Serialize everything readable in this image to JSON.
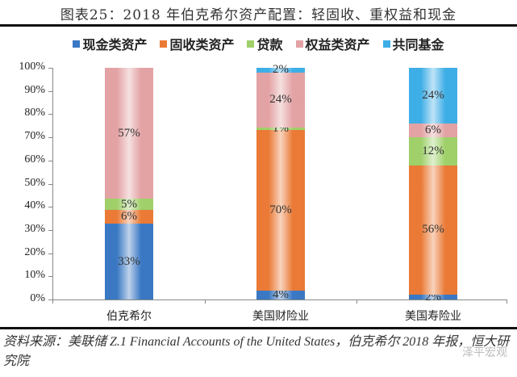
{
  "title": "图表25：2018 年伯克希尔资产配置：轻固收、重权益和现金",
  "legend": [
    {
      "label": "现金类资产",
      "color": "#3a78c3"
    },
    {
      "label": "固收类资产",
      "color": "#ea7a36"
    },
    {
      "label": "贷款",
      "color": "#9fd06a"
    },
    {
      "label": "权益类资产",
      "color": "#e3a2a4"
    },
    {
      "label": "共同基金",
      "color": "#3eaee6"
    }
  ],
  "y_ticks": [
    "0%",
    "10%",
    "20%",
    "30%",
    "40%",
    "50%",
    "60%",
    "70%",
    "80%",
    "90%",
    "100%"
  ],
  "x_labels": [
    "伯克希尔",
    "美国财险业",
    "美国寿险业"
  ],
  "bar_labels": {
    "b0": [
      "33%",
      "6%",
      "5%",
      "57%",
      ""
    ],
    "b1": [
      "4%",
      "70%",
      "1%",
      "24%",
      "2%"
    ],
    "b2": [
      "2%",
      "56%",
      "12%",
      "6%",
      "24%"
    ]
  },
  "source": "资料来源：美联储 Z.1 Financial Accounts of the United States，伯克希尔 2018 年报，恒大研究院",
  "watermark": "泽平宏观",
  "chart_data": {
    "type": "bar",
    "stacked": true,
    "percent_stacked": true,
    "title": "图表25：2018 年伯克希尔资产配置：轻固收、重权益和现金",
    "categories": [
      "伯克希尔",
      "美国财险业",
      "美国寿险业"
    ],
    "series": [
      {
        "name": "现金类资产",
        "values": [
          33,
          4,
          2
        ],
        "color": "#3a78c3"
      },
      {
        "name": "固收类资产",
        "values": [
          6,
          70,
          56
        ],
        "color": "#ea7a36"
      },
      {
        "name": "贷款",
        "values": [
          5,
          1,
          12
        ],
        "color": "#9fd06a"
      },
      {
        "name": "权益类资产",
        "values": [
          57,
          24,
          6
        ],
        "color": "#e3a2a4"
      },
      {
        "name": "共同基金",
        "values": [
          0,
          2,
          24
        ],
        "color": "#3eaee6"
      }
    ],
    "xlabel": "",
    "ylabel": "",
    "ylim": [
      0,
      100
    ],
    "y_tick_format": "percent",
    "grid": false,
    "legend_position": "top",
    "source": "资料来源：美联储 Z.1 Financial Accounts of the United States，伯克希尔 2018 年报，恒大研究院"
  }
}
